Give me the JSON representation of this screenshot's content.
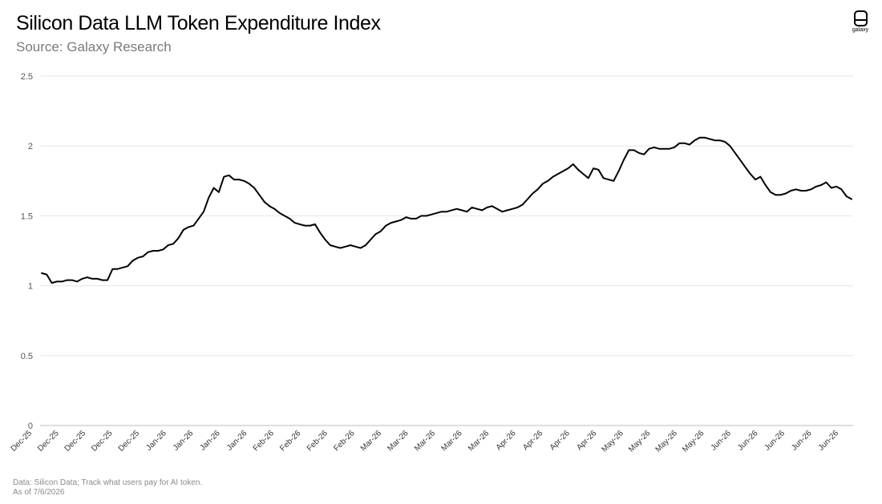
{
  "header": {
    "title": "Silicon Data LLM Token Expenditure Index",
    "subtitle": "Source: Galaxy Research"
  },
  "logo": {
    "text": "galaxy",
    "icon": "galaxy-logo-icon"
  },
  "footer": {
    "note": "Data: Silicon Data; Track what users pay for AI token.",
    "as_of": "As of 7/6/2026"
  },
  "chart_data": {
    "type": "line",
    "title": "Silicon Data LLM Token Expenditure Index",
    "subtitle": "Source: Galaxy Research",
    "xlabel": "",
    "ylabel": "",
    "ylim": [
      0,
      2.5
    ],
    "yticks": [
      0,
      0.5,
      1,
      1.5,
      2,
      2.5
    ],
    "ytick_labels": [
      "0",
      "0.5",
      "1",
      "1.5",
      "2",
      "2.5"
    ],
    "grid": "horizontal",
    "legend": "none",
    "line_color": "#000000",
    "xtick_labels": [
      "Dec-25",
      "Dec-25",
      "Dec-25",
      "Dec-25",
      "Dec-25",
      "Jan-26",
      "Jan-26",
      "Jan-26",
      "Jan-26",
      "Feb-26",
      "Feb-26",
      "Feb-26",
      "Feb-26",
      "Mar-26",
      "Mar-26",
      "Mar-26",
      "Mar-26",
      "Mar-26",
      "Apr-26",
      "Apr-26",
      "Apr-26",
      "Apr-26",
      "May-26",
      "May-26",
      "May-26",
      "May-26",
      "Jun-26",
      "Jun-26",
      "Jun-26",
      "Jun-26",
      "Jun-26"
    ],
    "series": [
      {
        "values": [
          1.09,
          1.08,
          1.02,
          1.03,
          1.03,
          1.04,
          1.04,
          1.03,
          1.05,
          1.06,
          1.05,
          1.05,
          1.04,
          1.04,
          1.12,
          1.12,
          1.13,
          1.14,
          1.18,
          1.2,
          1.21,
          1.24,
          1.25,
          1.25,
          1.26,
          1.29,
          1.3,
          1.34,
          1.4,
          1.42,
          1.43,
          1.48,
          1.53,
          1.63,
          1.7,
          1.67,
          1.78,
          1.79,
          1.76,
          1.76,
          1.75,
          1.73,
          1.7,
          1.65,
          1.6,
          1.57,
          1.55,
          1.52,
          1.5,
          1.48,
          1.45,
          1.44,
          1.43,
          1.43,
          1.44,
          1.38,
          1.33,
          1.29,
          1.28,
          1.27,
          1.28,
          1.29,
          1.28,
          1.27,
          1.29,
          1.33,
          1.37,
          1.39,
          1.43,
          1.45,
          1.46,
          1.47,
          1.49,
          1.48,
          1.48,
          1.5,
          1.5,
          1.51,
          1.52,
          1.53,
          1.53,
          1.54,
          1.55,
          1.54,
          1.53,
          1.56,
          1.55,
          1.54,
          1.56,
          1.57,
          1.55,
          1.53,
          1.54,
          1.55,
          1.56,
          1.58,
          1.62,
          1.66,
          1.69,
          1.73,
          1.75,
          1.78,
          1.8,
          1.82,
          1.84,
          1.87,
          1.83,
          1.8,
          1.77,
          1.84,
          1.83,
          1.77,
          1.76,
          1.75,
          1.82,
          1.9,
          1.97,
          1.97,
          1.95,
          1.94,
          1.98,
          1.99,
          1.98,
          1.98,
          1.98,
          1.99,
          2.02,
          2.02,
          2.01,
          2.04,
          2.06,
          2.06,
          2.05,
          2.04,
          2.04,
          2.03,
          2.0,
          1.95,
          1.9,
          1.85,
          1.8,
          1.76,
          1.78,
          1.72,
          1.67,
          1.65,
          1.65,
          1.66,
          1.68,
          1.69,
          1.68,
          1.68,
          1.69,
          1.71,
          1.72,
          1.74,
          1.7,
          1.71,
          1.69,
          1.64,
          1.62
        ]
      }
    ]
  }
}
